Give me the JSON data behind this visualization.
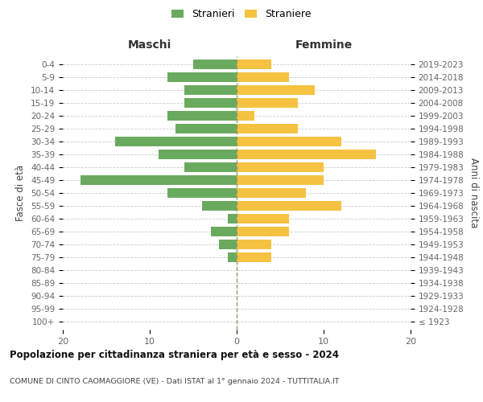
{
  "age_groups": [
    "100+",
    "95-99",
    "90-94",
    "85-89",
    "80-84",
    "75-79",
    "70-74",
    "65-69",
    "60-64",
    "55-59",
    "50-54",
    "45-49",
    "40-44",
    "35-39",
    "30-34",
    "25-29",
    "20-24",
    "15-19",
    "10-14",
    "5-9",
    "0-4"
  ],
  "birth_years": [
    "≤ 1923",
    "1924-1928",
    "1929-1933",
    "1934-1938",
    "1939-1943",
    "1944-1948",
    "1949-1953",
    "1954-1958",
    "1959-1963",
    "1964-1968",
    "1969-1973",
    "1974-1978",
    "1979-1983",
    "1984-1988",
    "1989-1993",
    "1994-1998",
    "1999-2003",
    "2004-2008",
    "2009-2013",
    "2014-2018",
    "2019-2023"
  ],
  "males": [
    0,
    0,
    0,
    0,
    0,
    1,
    2,
    3,
    1,
    4,
    8,
    18,
    6,
    9,
    14,
    7,
    8,
    6,
    6,
    8,
    5
  ],
  "females": [
    0,
    0,
    0,
    0,
    0,
    4,
    4,
    6,
    6,
    12,
    8,
    10,
    10,
    16,
    12,
    7,
    2,
    7,
    9,
    6,
    4
  ],
  "male_color": "#6aaa5e",
  "female_color": "#f5c242",
  "background_color": "#ffffff",
  "grid_color": "#cccccc",
  "vline_color": "#999966",
  "title": "Popolazione per cittadinanza straniera per età e sesso - 2024",
  "subtitle": "COMUNE DI CINTO CAOMAGGIORE (VE) - Dati ISTAT al 1° gennaio 2024 - TUTTITALIA.IT",
  "label_maschi": "Maschi",
  "label_femmine": "Femmine",
  "ylabel_left": "Fasce di età",
  "ylabel_right": "Anni di nascita",
  "legend_male": "Stranieri",
  "legend_female": "Straniere",
  "xlim": 20,
  "bar_height": 0.75
}
